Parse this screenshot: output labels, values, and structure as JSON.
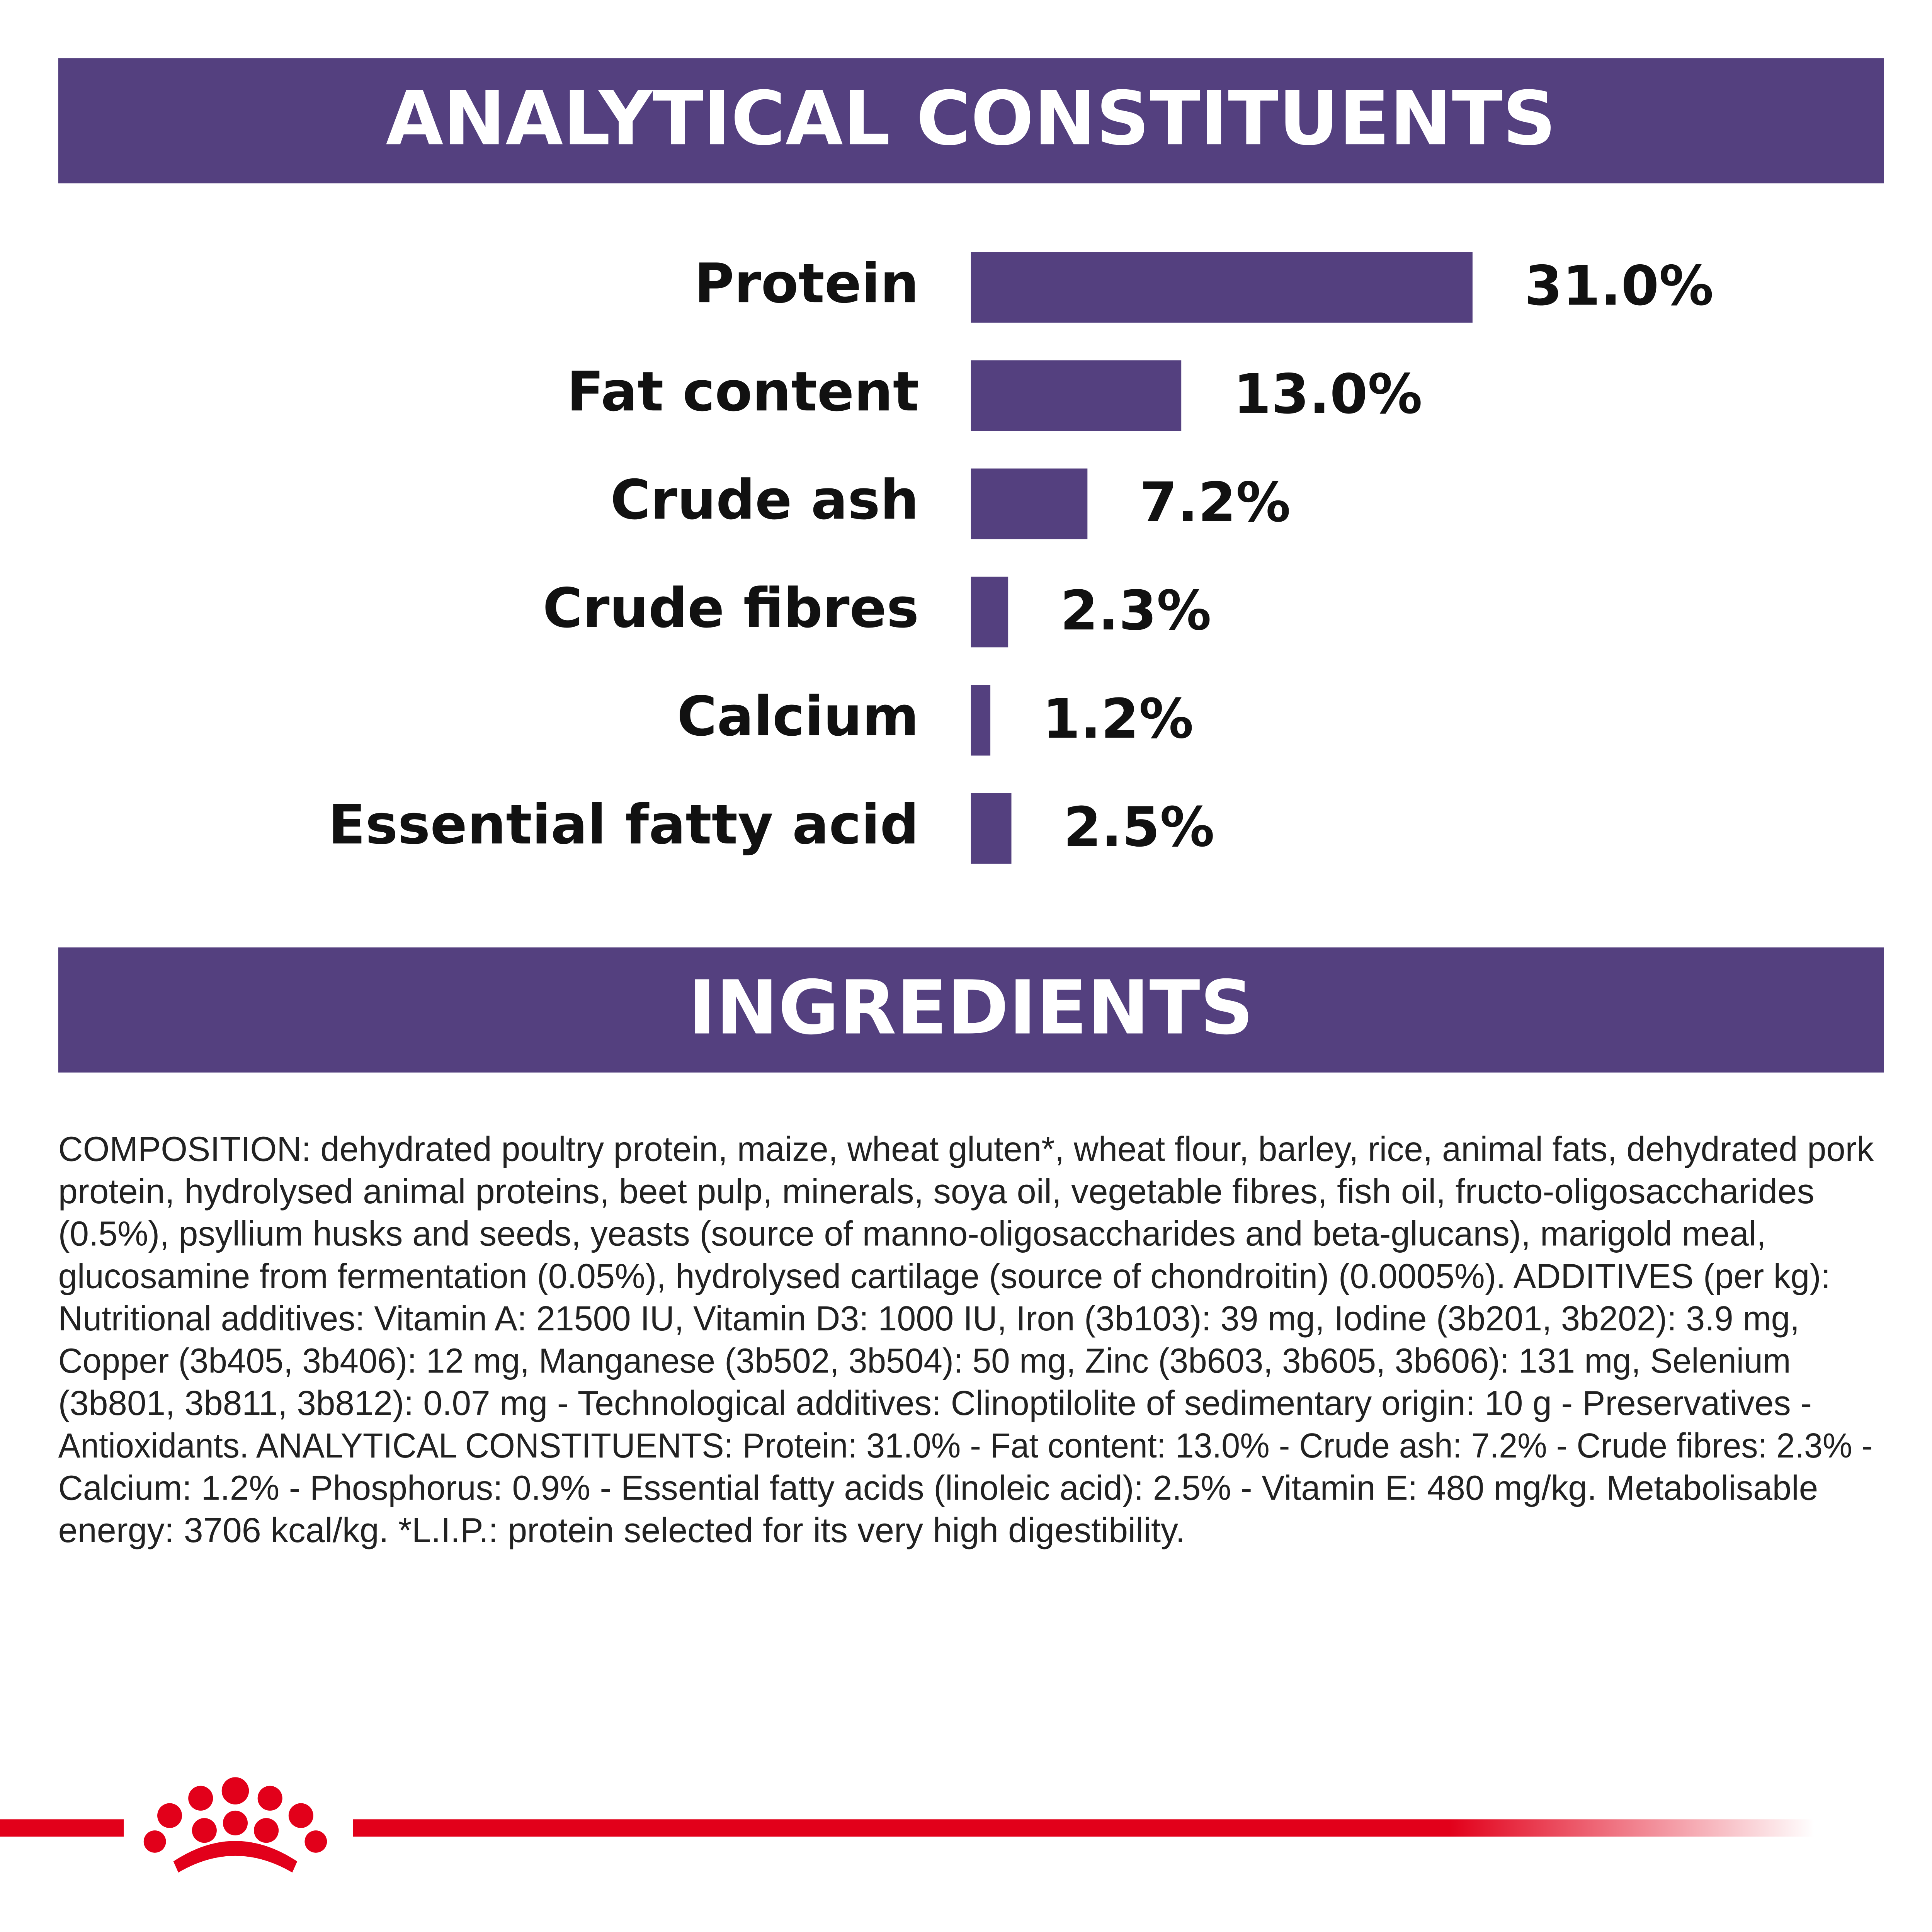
{
  "chart_data": {
    "type": "bar",
    "orientation": "horizontal",
    "title": "ANALYTICAL CONSTITUENTS",
    "categories": [
      "Protein",
      "Fat content",
      "Crude ash",
      "Crude fibres",
      "Calcium",
      "Essential fatty acid"
    ],
    "values": [
      31.0,
      13.0,
      7.2,
      2.3,
      1.2,
      2.5
    ],
    "value_labels": [
      "31.0%",
      "13.0%",
      "7.2%",
      "2.3%",
      "1.2%",
      "2.5%"
    ],
    "color": "#54407f"
  },
  "ingredients": {
    "title": "INGREDIENTS",
    "lines": [
      "COMPOSITION: dehydrated poultry protein, maize, wheat gluten*, wheat flour, barley, rice, animal fats, dehydrated pork",
      "protein, hydrolysed animal proteins, beet pulp, minerals, soya oil, vegetable fibres, fish oil, fructo-oligosaccharides",
      "(0.5%), psyllium husks and seeds, yeasts (source of manno-oligosaccharides and beta-glucans), marigold meal,",
      "glucosamine from fermentation (0.05%), hydrolysed cartilage (source of chondroitin) (0.0005%). ADDITIVES (per kg):",
      "Nutritional additives: Vitamin A: 21500 IU, Vitamin D3: 1000 IU, Iron (3b103): 39 mg, Iodine (3b201, 3b202): 3.9 mg,",
      "Copper (3b405, 3b406): 12 mg, Manganese (3b502, 3b504): 50 mg, Zinc (3b603, 3b605, 3b606): 131 mg, Selenium",
      "(3b801, 3b811, 3b812): 0.07 mg - Technological additives: Clinoptilolite of sedimentary origin: 10 g - Preservatives -",
      "Antioxidants. ANALYTICAL CONSTITUENTS: Protein: 31.0% - Fat content: 13.0% - Crude ash: 7.2% - Crude fibres: 2.3% -",
      "Calcium: 1.2% - Phosphorus: 0.9% - Essential fatty acids (linoleic acid): 2.5% - Vitamin E: 480 mg/kg. Metabolisable",
      "energy: 3706 kcal/kg. *L.I.P.: protein selected for its very high digestibility."
    ]
  }
}
